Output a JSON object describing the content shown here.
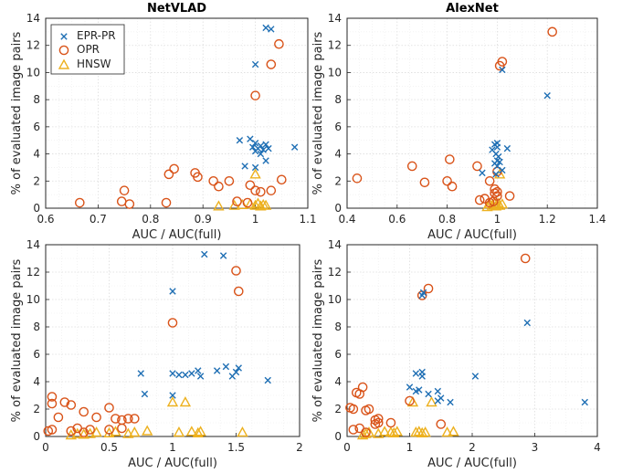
{
  "colors": {
    "EPR-PR": "#1f6fb4",
    "OPR": "#d95319",
    "HNSW": "#edb120"
  },
  "chart_data": [
    {
      "type": "scatter",
      "title": "NetVLAD",
      "xlabel": "AUC / AUC(full)",
      "ylabel": "% of evaluated image pairs",
      "xlim": [
        0.6,
        1.1
      ],
      "ylim": [
        0,
        14
      ],
      "xticks": [
        "0.6",
        "0.7",
        "0.8",
        "0.9",
        "1",
        "1.1"
      ],
      "yticks": [
        "0",
        "2",
        "4",
        "6",
        "8",
        "10",
        "12",
        "14"
      ],
      "grid": true,
      "legend": {
        "placement": "top-left",
        "entries": [
          "EPR-PR",
          "OPR",
          "HNSW"
        ]
      },
      "series": [
        {
          "name": "EPR-PR",
          "marker": "x",
          "points": [
            [
              1.02,
              13.3
            ],
            [
              1.03,
              13.2
            ],
            [
              1.0,
              10.6
            ],
            [
              0.97,
              5.0
            ],
            [
              0.99,
              5.1
            ],
            [
              1.0,
              4.8
            ],
            [
              0.995,
              4.5
            ],
            [
              1.005,
              4.4
            ],
            [
              1.01,
              4.6
            ],
            [
              1.015,
              4.3
            ],
            [
              1.02,
              4.7
            ],
            [
              1.025,
              4.4
            ],
            [
              1.0,
              4.2
            ],
            [
              1.01,
              4.0
            ],
            [
              1.075,
              4.5
            ],
            [
              0.98,
              3.1
            ],
            [
              1.0,
              3.0
            ],
            [
              1.02,
              3.5
            ]
          ]
        },
        {
          "name": "OPR",
          "marker": "o",
          "points": [
            [
              1.045,
              12.1
            ],
            [
              1.03,
              10.6
            ],
            [
              1.0,
              8.3
            ],
            [
              0.845,
              2.9
            ],
            [
              0.835,
              2.5
            ],
            [
              0.885,
              2.6
            ],
            [
              0.89,
              2.3
            ],
            [
              0.92,
              2.0
            ],
            [
              0.95,
              2.0
            ],
            [
              0.93,
              1.6
            ],
            [
              0.99,
              1.7
            ],
            [
              1.0,
              1.3
            ],
            [
              1.01,
              1.2
            ],
            [
              1.03,
              1.3
            ],
            [
              1.05,
              2.1
            ],
            [
              0.665,
              0.4
            ],
            [
              0.745,
              0.5
            ],
            [
              0.75,
              1.3
            ],
            [
              0.76,
              0.3
            ],
            [
              0.83,
              0.4
            ],
            [
              0.965,
              0.5
            ],
            [
              0.985,
              0.4
            ]
          ]
        },
        {
          "name": "HNSW",
          "marker": "triangle",
          "points": [
            [
              1.0,
              2.5
            ],
            [
              0.93,
              0.15
            ],
            [
              0.96,
              0.2
            ],
            [
              0.975,
              0.25
            ],
            [
              0.99,
              0.3
            ],
            [
              1.0,
              0.2
            ],
            [
              1.005,
              0.35
            ],
            [
              1.01,
              0.15
            ],
            [
              1.015,
              0.25
            ],
            [
              1.02,
              0.2
            ]
          ]
        }
      ]
    },
    {
      "type": "scatter",
      "title": "AlexNet",
      "xlabel": "AUC / AUC(full)",
      "ylabel": "% of evaluated image pairs",
      "xlim": [
        0.4,
        1.4
      ],
      "ylim": [
        0,
        14
      ],
      "xticks": [
        "0.4",
        "0.6",
        "0.8",
        "1",
        "1.2",
        "1.4"
      ],
      "yticks": [
        "0",
        "2",
        "4",
        "6",
        "8",
        "10",
        "12",
        "14"
      ],
      "grid": true,
      "series": [
        {
          "name": "EPR-PR",
          "marker": "x",
          "points": [
            [
              1.02,
              10.2
            ],
            [
              1.2,
              8.3
            ],
            [
              0.99,
              4.7
            ],
            [
              1.0,
              4.8
            ],
            [
              1.0,
              4.5
            ],
            [
              0.98,
              4.3
            ],
            [
              1.04,
              4.4
            ],
            [
              0.995,
              4.0
            ],
            [
              1.005,
              3.8
            ],
            [
              1.0,
              3.5
            ],
            [
              0.99,
              3.3
            ],
            [
              1.01,
              3.4
            ],
            [
              1.0,
              3.1
            ],
            [
              0.94,
              2.6
            ],
            [
              1.02,
              2.8
            ],
            [
              0.995,
              2.5
            ]
          ]
        },
        {
          "name": "OPR",
          "marker": "o",
          "points": [
            [
              1.22,
              13.0
            ],
            [
              1.02,
              10.8
            ],
            [
              1.01,
              10.5
            ],
            [
              0.44,
              2.2
            ],
            [
              0.66,
              3.1
            ],
            [
              0.81,
              3.6
            ],
            [
              0.71,
              1.9
            ],
            [
              0.8,
              2.0
            ],
            [
              0.82,
              1.6
            ],
            [
              0.92,
              3.1
            ],
            [
              0.97,
              2.0
            ],
            [
              0.99,
              1.4
            ],
            [
              0.99,
              1.1
            ],
            [
              1.0,
              1.2
            ],
            [
              1.0,
              0.9
            ],
            [
              1.0,
              2.7
            ],
            [
              1.05,
              0.9
            ],
            [
              0.93,
              0.6
            ],
            [
              0.95,
              0.7
            ],
            [
              0.97,
              0.4
            ],
            [
              0.985,
              0.5
            ]
          ]
        },
        {
          "name": "HNSW",
          "marker": "triangle",
          "points": [
            [
              1.01,
              2.5
            ],
            [
              0.96,
              0.1
            ],
            [
              0.97,
              0.3
            ],
            [
              0.98,
              0.2
            ],
            [
              0.99,
              0.35
            ],
            [
              0.995,
              0.15
            ],
            [
              1.0,
              0.25
            ],
            [
              1.005,
              0.35
            ],
            [
              1.01,
              0.2
            ],
            [
              1.02,
              0.3
            ]
          ]
        }
      ]
    },
    {
      "type": "scatter",
      "title": "",
      "xlabel": "AUC / AUC(full)",
      "ylabel": "% of evaluated image pairs",
      "xlim": [
        0,
        2
      ],
      "ylim": [
        0,
        14
      ],
      "xticks": [
        "0",
        "0.5",
        "1",
        "1.5",
        "2"
      ],
      "yticks": [
        "0",
        "2",
        "4",
        "6",
        "8",
        "10",
        "12",
        "14"
      ],
      "grid": true,
      "series": [
        {
          "name": "EPR-PR",
          "marker": "x",
          "points": [
            [
              1.25,
              13.3
            ],
            [
              1.4,
              13.2
            ],
            [
              1.0,
              10.6
            ],
            [
              0.75,
              4.6
            ],
            [
              1.0,
              4.6
            ],
            [
              1.05,
              4.5
            ],
            [
              1.1,
              4.5
            ],
            [
              1.15,
              4.6
            ],
            [
              1.2,
              4.8
            ],
            [
              1.22,
              4.4
            ],
            [
              1.35,
              4.8
            ],
            [
              1.42,
              5.1
            ],
            [
              1.47,
              4.4
            ],
            [
              1.5,
              4.7
            ],
            [
              1.52,
              5.0
            ],
            [
              1.75,
              4.1
            ],
            [
              0.78,
              3.1
            ],
            [
              1.0,
              3.0
            ]
          ]
        },
        {
          "name": "OPR",
          "marker": "o",
          "points": [
            [
              1.5,
              12.1
            ],
            [
              1.52,
              10.6
            ],
            [
              1.0,
              8.3
            ],
            [
              0.05,
              2.9
            ],
            [
              0.15,
              2.5
            ],
            [
              0.2,
              2.3
            ],
            [
              0.05,
              2.4
            ],
            [
              0.1,
              1.4
            ],
            [
              0.3,
              1.8
            ],
            [
              0.4,
              1.4
            ],
            [
              0.5,
              2.1
            ],
            [
              0.55,
              1.3
            ],
            [
              0.6,
              1.2
            ],
            [
              0.65,
              1.3
            ],
            [
              0.7,
              1.3
            ],
            [
              0.02,
              0.4
            ],
            [
              0.05,
              0.5
            ],
            [
              0.2,
              0.4
            ],
            [
              0.25,
              0.6
            ],
            [
              0.35,
              0.5
            ],
            [
              0.5,
              0.5
            ],
            [
              0.6,
              0.6
            ],
            [
              0.3,
              0.3
            ]
          ]
        },
        {
          "name": "HNSW",
          "marker": "triangle",
          "points": [
            [
              1.0,
              2.5
            ],
            [
              1.1,
              2.5
            ],
            [
              0.2,
              0.1
            ],
            [
              0.25,
              0.2
            ],
            [
              0.3,
              0.15
            ],
            [
              0.35,
              0.2
            ],
            [
              0.4,
              0.3
            ],
            [
              0.5,
              0.25
            ],
            [
              0.55,
              0.35
            ],
            [
              0.65,
              0.2
            ],
            [
              0.7,
              0.3
            ],
            [
              0.8,
              0.4
            ],
            [
              1.05,
              0.3
            ],
            [
              1.15,
              0.35
            ],
            [
              1.2,
              0.25
            ],
            [
              1.22,
              0.35
            ],
            [
              1.55,
              0.3
            ]
          ]
        }
      ]
    },
    {
      "type": "scatter",
      "title": "",
      "xlabel": "AUC / AUC(full)",
      "ylabel": "% of evaluated image pairs",
      "xlim": [
        0,
        4
      ],
      "ylim": [
        0,
        14
      ],
      "xticks": [
        "0",
        "1",
        "2",
        "3",
        "4"
      ],
      "yticks": [
        "0",
        "2",
        "4",
        "6",
        "8",
        "10",
        "12",
        "14"
      ],
      "grid": true,
      "series": [
        {
          "name": "EPR-PR",
          "marker": "x",
          "points": [
            [
              1.2,
              10.3
            ],
            [
              1.22,
              10.5
            ],
            [
              2.88,
              8.3
            ],
            [
              1.1,
              4.6
            ],
            [
              1.2,
              4.7
            ],
            [
              1.2,
              4.4
            ],
            [
              2.05,
              4.4
            ],
            [
              1.0,
              3.6
            ],
            [
              1.1,
              3.3
            ],
            [
              1.15,
              3.4
            ],
            [
              1.3,
              3.1
            ],
            [
              1.45,
              3.3
            ],
            [
              1.5,
              2.8
            ],
            [
              1.65,
              2.5
            ],
            [
              1.45,
              2.6
            ],
            [
              3.8,
              2.5
            ]
          ]
        },
        {
          "name": "OPR",
          "marker": "o",
          "points": [
            [
              2.85,
              13.0
            ],
            [
              1.3,
              10.8
            ],
            [
              1.2,
              10.3
            ],
            [
              0.15,
              3.2
            ],
            [
              0.05,
              2.1
            ],
            [
              0.1,
              2.0
            ],
            [
              0.25,
              3.6
            ],
            [
              0.2,
              3.1
            ],
            [
              0.3,
              1.9
            ],
            [
              0.35,
              2.0
            ],
            [
              0.45,
              0.9
            ],
            [
              0.45,
              1.2
            ],
            [
              0.5,
              1.3
            ],
            [
              0.5,
              1.0
            ],
            [
              0.7,
              1.0
            ],
            [
              1.0,
              2.6
            ],
            [
              1.5,
              0.9
            ],
            [
              0.1,
              0.5
            ],
            [
              0.2,
              0.6
            ],
            [
              0.3,
              0.3
            ]
          ]
        },
        {
          "name": "HNSW",
          "marker": "triangle",
          "points": [
            [
              1.05,
              2.5
            ],
            [
              1.35,
              2.5
            ],
            [
              0.25,
              0.1
            ],
            [
              0.3,
              0.2
            ],
            [
              0.35,
              0.3
            ],
            [
              0.5,
              0.2
            ],
            [
              0.6,
              0.35
            ],
            [
              0.7,
              0.3
            ],
            [
              0.75,
              0.25
            ],
            [
              0.8,
              0.35
            ],
            [
              1.1,
              0.3
            ],
            [
              1.15,
              0.35
            ],
            [
              1.2,
              0.25
            ],
            [
              1.25,
              0.3
            ],
            [
              1.6,
              0.3
            ],
            [
              1.7,
              0.35
            ]
          ]
        }
      ]
    }
  ]
}
